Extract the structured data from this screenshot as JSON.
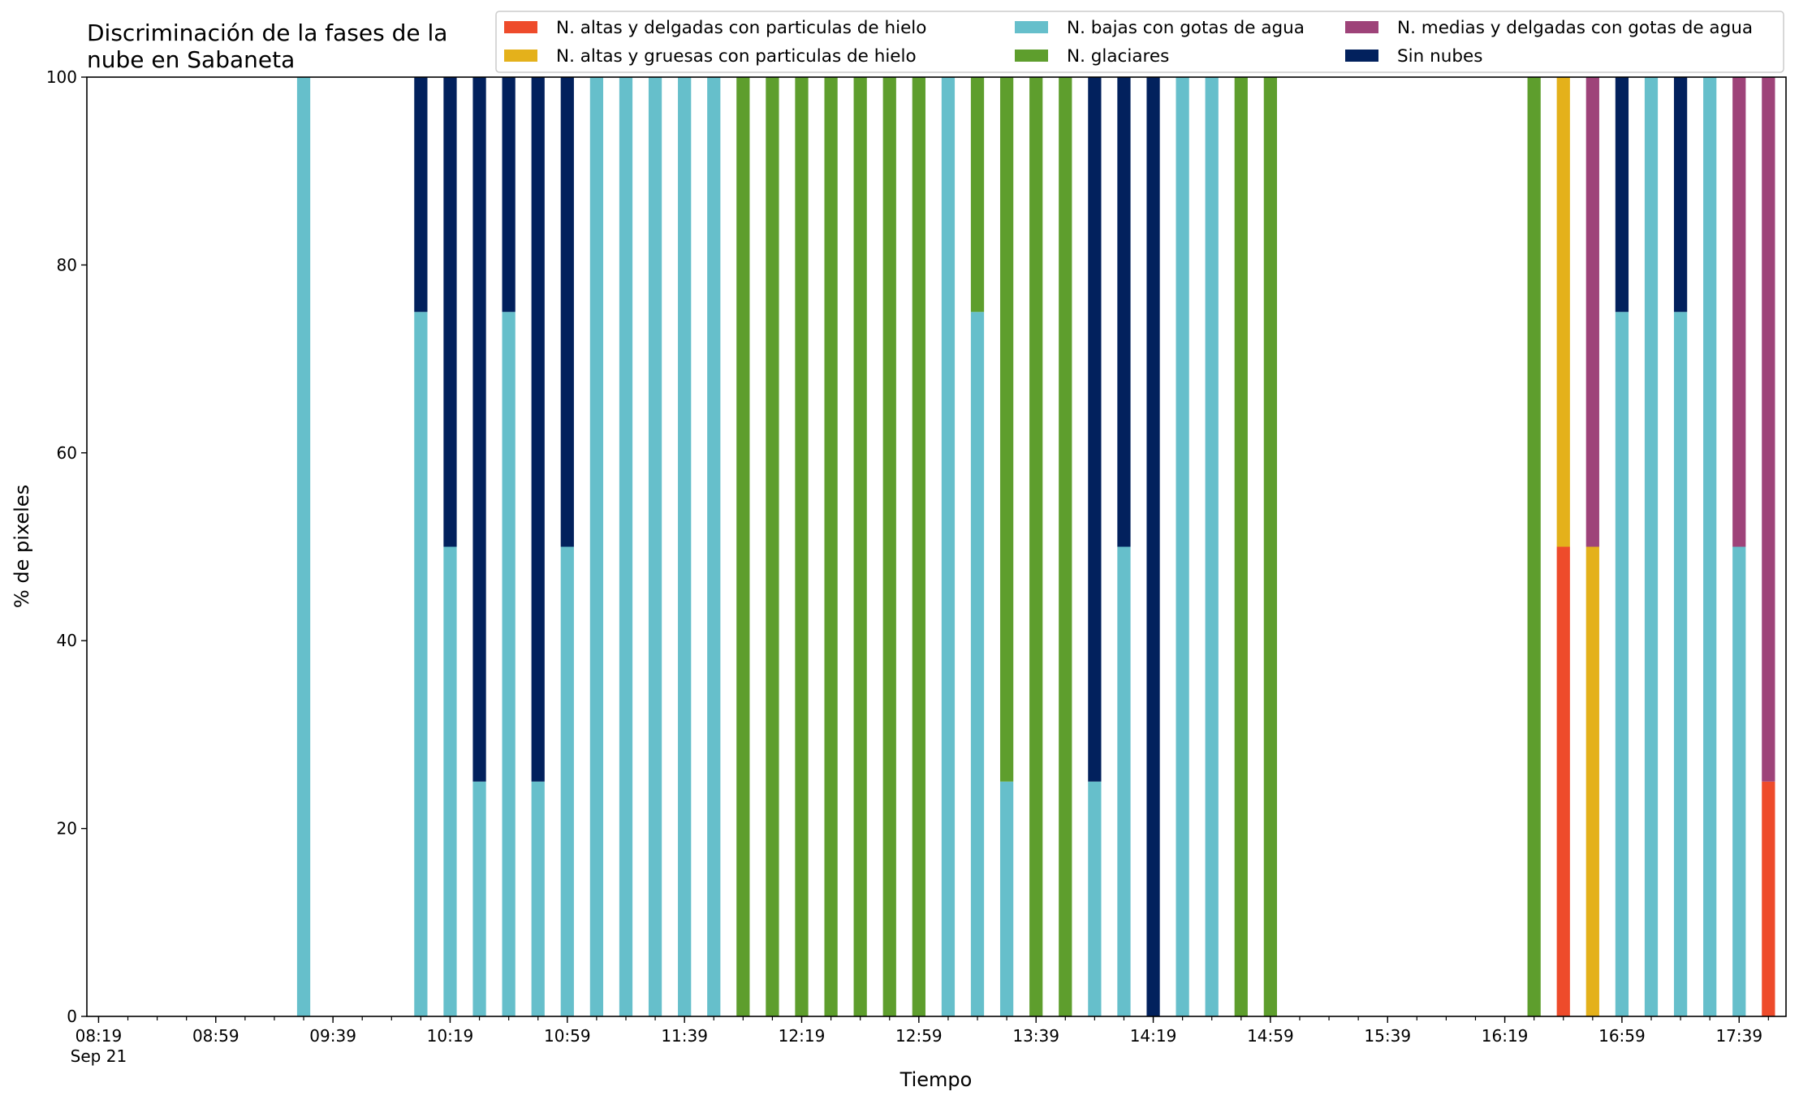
{
  "chart_data": {
    "type": "bar",
    "stacked": true,
    "title_lines": [
      "Discriminación de la fases de la",
      "nube en Sabaneta"
    ],
    "xlabel": "Tiempo",
    "ylabel": "% de pixeles",
    "ylim": [
      0,
      100
    ],
    "yticks": [
      0,
      20,
      40,
      60,
      80,
      100
    ],
    "xlim": [
      "08:15",
      "17:55"
    ],
    "xtick_labels": [
      "08:19",
      "08:59",
      "09:39",
      "10:19",
      "10:59",
      "11:39",
      "12:19",
      "12:59",
      "13:39",
      "14:19",
      "14:59",
      "15:39",
      "16:19",
      "16:59",
      "17:39"
    ],
    "xtick_sublabel": "Sep 21",
    "minor_tick_interval_min": 10,
    "bar_width_min": 4.5,
    "grid": false,
    "legend": {
      "placement": "top-right",
      "columns": 3
    },
    "series": [
      {
        "name": "N. altas y delgadas con particulas de hielo",
        "color": "#EE4B2B"
      },
      {
        "name": "N. altas y gruesas con particulas de hielo",
        "color": "#E4B11B"
      },
      {
        "name": "N. bajas con gotas de agua",
        "color": "#66BFCB"
      },
      {
        "name": "N. glaciares",
        "color": "#5E9E2D"
      },
      {
        "name": "N. medias y delgadas con gotas de agua",
        "color": "#9E4379"
      },
      {
        "name": "Sin nubes",
        "color": "#02215D"
      }
    ],
    "x": [
      "09:29",
      "10:09",
      "10:19",
      "10:29",
      "10:39",
      "10:49",
      "10:59",
      "11:09",
      "11:19",
      "11:29",
      "11:39",
      "11:49",
      "11:59",
      "12:09",
      "12:19",
      "12:29",
      "12:39",
      "12:49",
      "12:59",
      "13:09",
      "13:19",
      "13:29",
      "13:39",
      "13:49",
      "13:59",
      "14:09",
      "14:19",
      "14:29",
      "14:39",
      "14:49",
      "14:59",
      "16:29",
      "16:39",
      "16:49",
      "16:59",
      "17:09",
      "17:19",
      "17:29",
      "17:39",
      "17:49"
    ],
    "stacks": [
      [
        0,
        0,
        100,
        0,
        0,
        0
      ],
      [
        0,
        0,
        75,
        0,
        0,
        25
      ],
      [
        0,
        0,
        50,
        0,
        0,
        50
      ],
      [
        0,
        0,
        25,
        0,
        0,
        75
      ],
      [
        0,
        0,
        75,
        0,
        0,
        25
      ],
      [
        0,
        0,
        25,
        0,
        0,
        75
      ],
      [
        0,
        0,
        50,
        0,
        0,
        50
      ],
      [
        0,
        0,
        100,
        0,
        0,
        0
      ],
      [
        0,
        0,
        100,
        0,
        0,
        0
      ],
      [
        0,
        0,
        100,
        0,
        0,
        0
      ],
      [
        0,
        0,
        100,
        0,
        0,
        0
      ],
      [
        0,
        0,
        100,
        0,
        0,
        0
      ],
      [
        0,
        0,
        0,
        100,
        0,
        0
      ],
      [
        0,
        0,
        0,
        100,
        0,
        0
      ],
      [
        0,
        0,
        0,
        100,
        0,
        0
      ],
      [
        0,
        0,
        0,
        100,
        0,
        0
      ],
      [
        0,
        0,
        0,
        100,
        0,
        0
      ],
      [
        0,
        0,
        0,
        100,
        0,
        0
      ],
      [
        0,
        0,
        0,
        100,
        0,
        0
      ],
      [
        0,
        0,
        100,
        0,
        0,
        0
      ],
      [
        0,
        0,
        75,
        25,
        0,
        0
      ],
      [
        0,
        0,
        25,
        75,
        0,
        0
      ],
      [
        0,
        0,
        0,
        100,
        0,
        0
      ],
      [
        0,
        0,
        0,
        100,
        0,
        0
      ],
      [
        0,
        0,
        25,
        0,
        0,
        75
      ],
      [
        0,
        0,
        50,
        0,
        0,
        50
      ],
      [
        0,
        0,
        0,
        0,
        0,
        100
      ],
      [
        0,
        0,
        100,
        0,
        0,
        0
      ],
      [
        0,
        0,
        100,
        0,
        0,
        0
      ],
      [
        0,
        0,
        0,
        100,
        0,
        0
      ],
      [
        0,
        0,
        0,
        100,
        0,
        0
      ],
      [
        0,
        0,
        0,
        100,
        0,
        0
      ],
      [
        50,
        50,
        0,
        0,
        0,
        0
      ],
      [
        0,
        50,
        0,
        0,
        50,
        0
      ],
      [
        0,
        0,
        75,
        0,
        0,
        25
      ],
      [
        0,
        0,
        100,
        0,
        0,
        0
      ],
      [
        0,
        0,
        75,
        0,
        0,
        25
      ],
      [
        0,
        0,
        100,
        0,
        0,
        0
      ],
      [
        0,
        0,
        50,
        0,
        50,
        0
      ],
      [
        25,
        0,
        0,
        0,
        75,
        0
      ]
    ]
  }
}
